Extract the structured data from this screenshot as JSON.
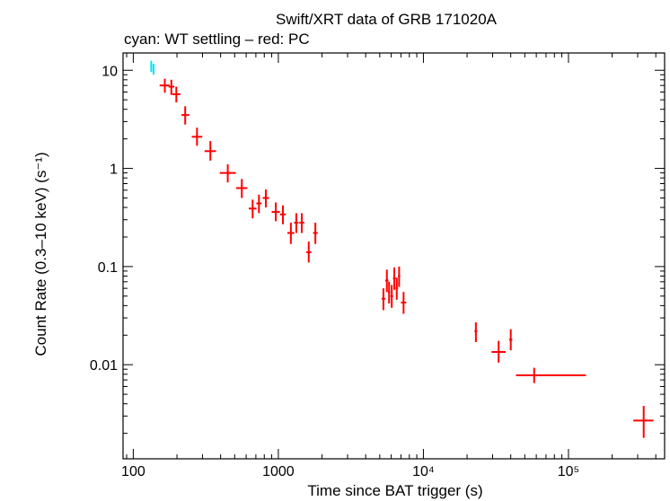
{
  "chart_data": {
    "type": "scatter",
    "title": "Swift/XRT data of GRB 171020A",
    "subtitle": "cyan: WT settling – red: PC",
    "xlabel": "Time since BAT trigger (s)",
    "ylabel": "Count Rate (0.3–10 keV) (s⁻¹)",
    "x_scale": "log",
    "y_scale": "log",
    "xlim": [
      85,
      460000
    ],
    "ylim": [
      0.0011,
      15
    ],
    "x_ticks": [
      {
        "value": 100,
        "label": "100"
      },
      {
        "value": 1000,
        "label": "1000"
      },
      {
        "value": 10000,
        "label": "10⁴"
      },
      {
        "value": 100000,
        "label": "10⁵"
      }
    ],
    "y_ticks": [
      {
        "value": 10,
        "label": "10"
      },
      {
        "value": 1,
        "label": "1"
      },
      {
        "value": 0.1,
        "label": "0.1"
      },
      {
        "value": 0.01,
        "label": "0.01"
      }
    ],
    "series": [
      {
        "color": "#00e5ee",
        "points": [
          {
            "x": 133,
            "xlo": 131,
            "xhi": 135,
            "y": 11.0,
            "ylo": 9.6,
            "yhi": 12.5
          },
          {
            "x": 138,
            "xlo": 136,
            "xhi": 140,
            "y": 10.3,
            "ylo": 9.0,
            "yhi": 11.6
          }
        ]
      },
      {
        "color": "#ff0000",
        "points": [
          {
            "x": 165,
            "xlo": 152,
            "xhi": 178,
            "y": 7.0,
            "ylo": 5.9,
            "yhi": 8.2
          },
          {
            "x": 183,
            "xlo": 175,
            "xhi": 192,
            "y": 6.8,
            "ylo": 5.6,
            "yhi": 8.0
          },
          {
            "x": 198,
            "xlo": 186,
            "xhi": 211,
            "y": 5.7,
            "ylo": 4.7,
            "yhi": 6.8
          },
          {
            "x": 228,
            "xlo": 215,
            "xhi": 243,
            "y": 3.5,
            "ylo": 2.8,
            "yhi": 4.3
          },
          {
            "x": 275,
            "xlo": 253,
            "xhi": 299,
            "y": 2.1,
            "ylo": 1.7,
            "yhi": 2.6
          },
          {
            "x": 340,
            "xlo": 310,
            "xhi": 372,
            "y": 1.5,
            "ylo": 1.2,
            "yhi": 1.9
          },
          {
            "x": 448,
            "xlo": 395,
            "xhi": 508,
            "y": 0.9,
            "ylo": 0.72,
            "yhi": 1.1
          },
          {
            "x": 560,
            "xlo": 512,
            "xhi": 612,
            "y": 0.63,
            "ylo": 0.5,
            "yhi": 0.78
          },
          {
            "x": 665,
            "xlo": 625,
            "xhi": 707,
            "y": 0.39,
            "ylo": 0.31,
            "yhi": 0.48
          },
          {
            "x": 735,
            "xlo": 705,
            "xhi": 767,
            "y": 0.44,
            "ylo": 0.35,
            "yhi": 0.54
          },
          {
            "x": 820,
            "xlo": 780,
            "xhi": 862,
            "y": 0.5,
            "ylo": 0.4,
            "yhi": 0.61
          },
          {
            "x": 960,
            "xlo": 900,
            "xhi": 1024,
            "y": 0.36,
            "ylo": 0.29,
            "yhi": 0.45
          },
          {
            "x": 1075,
            "xlo": 1025,
            "xhi": 1127,
            "y": 0.34,
            "ylo": 0.27,
            "yhi": 0.42
          },
          {
            "x": 1220,
            "xlo": 1155,
            "xhi": 1289,
            "y": 0.22,
            "ylo": 0.17,
            "yhi": 0.28
          },
          {
            "x": 1330,
            "xlo": 1285,
            "xhi": 1377,
            "y": 0.28,
            "ylo": 0.22,
            "yhi": 0.35
          },
          {
            "x": 1450,
            "xlo": 1395,
            "xhi": 1507,
            "y": 0.28,
            "ylo": 0.22,
            "yhi": 0.35
          },
          {
            "x": 1620,
            "xlo": 1555,
            "xhi": 1688,
            "y": 0.14,
            "ylo": 0.11,
            "yhi": 0.18
          },
          {
            "x": 1800,
            "xlo": 1735,
            "xhi": 1868,
            "y": 0.22,
            "ylo": 0.17,
            "yhi": 0.28
          },
          {
            "x": 5300,
            "xlo": 5150,
            "xhi": 5455,
            "y": 0.047,
            "ylo": 0.036,
            "yhi": 0.06
          },
          {
            "x": 5600,
            "xlo": 5460,
            "xhi": 5744,
            "y": 0.072,
            "ylo": 0.055,
            "yhi": 0.093
          },
          {
            "x": 5800,
            "xlo": 5700,
            "xhi": 5902,
            "y": 0.055,
            "ylo": 0.042,
            "yhi": 0.07
          },
          {
            "x": 6050,
            "xlo": 5920,
            "xhi": 6183,
            "y": 0.05,
            "ylo": 0.038,
            "yhi": 0.065
          },
          {
            "x": 6300,
            "xlo": 6170,
            "xhi": 6433,
            "y": 0.076,
            "ylo": 0.058,
            "yhi": 0.098
          },
          {
            "x": 6550,
            "xlo": 6420,
            "xhi": 6683,
            "y": 0.06,
            "ylo": 0.046,
            "yhi": 0.077
          },
          {
            "x": 6800,
            "xlo": 6680,
            "xhi": 6922,
            "y": 0.08,
            "ylo": 0.062,
            "yhi": 0.1
          },
          {
            "x": 7300,
            "xlo": 7000,
            "xhi": 7613,
            "y": 0.043,
            "ylo": 0.033,
            "yhi": 0.055
          },
          {
            "x": 23000,
            "xlo": 22500,
            "xhi": 23511,
            "y": 0.022,
            "ylo": 0.017,
            "yhi": 0.027
          },
          {
            "x": 33000,
            "xlo": 29500,
            "xhi": 36900,
            "y": 0.0135,
            "ylo": 0.0105,
            "yhi": 0.0175
          },
          {
            "x": 40000,
            "xlo": 39000,
            "xhi": 41025,
            "y": 0.018,
            "ylo": 0.014,
            "yhi": 0.023
          },
          {
            "x": 58000,
            "xlo": 43500,
            "xhi": 132000,
            "y": 0.0078,
            "ylo": 0.0065,
            "yhi": 0.0093
          },
          {
            "x": 330000,
            "xlo": 280000,
            "xhi": 385000,
            "y": 0.0027,
            "ylo": 0.0018,
            "yhi": 0.0038
          }
        ]
      }
    ]
  }
}
